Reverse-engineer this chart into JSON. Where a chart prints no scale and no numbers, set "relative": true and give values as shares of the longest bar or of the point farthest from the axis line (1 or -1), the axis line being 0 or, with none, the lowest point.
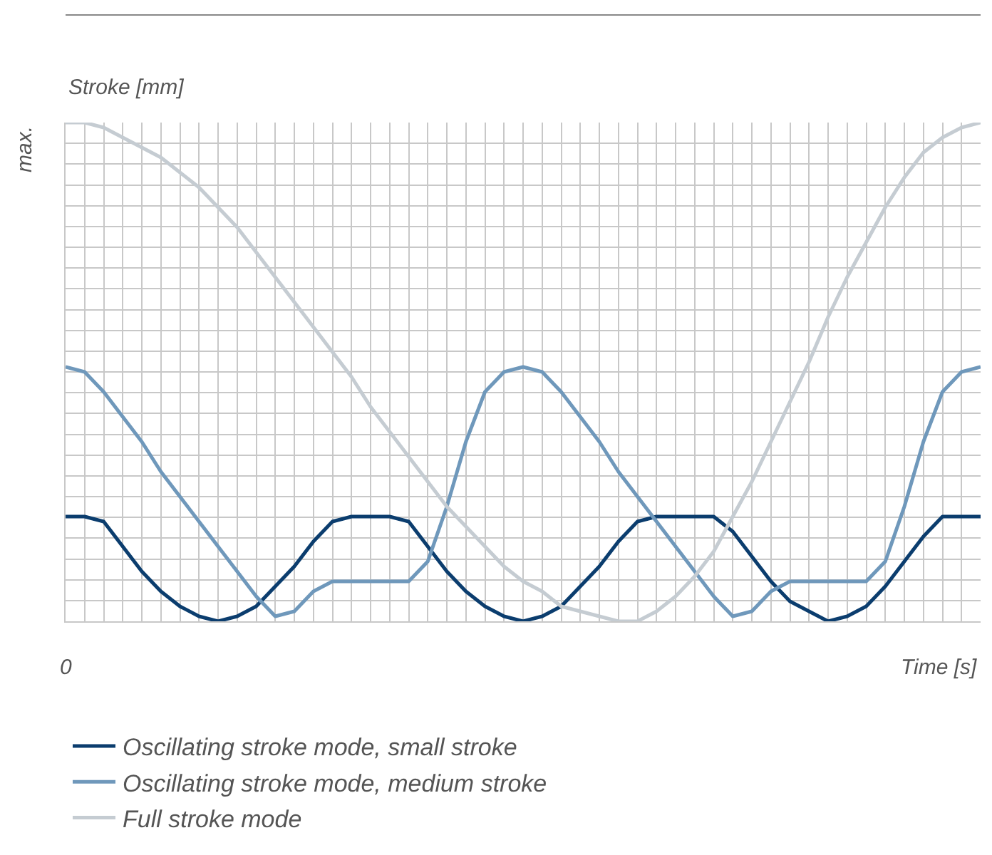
{
  "chart_data": {
    "type": "line",
    "relative": true,
    "xlabel": "Time [s]",
    "ylabel": "Stroke [mm]",
    "annotations": [
      "max.",
      "0"
    ],
    "categories": [
      null,
      null,
      null,
      null,
      null,
      null,
      null,
      null,
      null,
      null,
      null,
      null,
      null,
      null,
      null,
      null,
      null,
      null,
      null,
      null,
      null,
      null,
      null,
      null,
      null,
      null,
      null,
      null,
      null,
      null,
      null,
      null,
      null,
      null,
      null,
      null,
      null,
      null,
      null,
      null,
      null,
      null,
      null,
      null,
      null,
      null,
      null,
      null,
      null
    ],
    "grid": true,
    "legend": "bottom",
    "marker": "none",
    "line_style": "solid",
    "series": [
      {
        "name": "Oscillating stroke mode, small stroke",
        "color": "#0b3d6e",
        "values": [
          0.21,
          0.21,
          0.2,
          0.15,
          0.1,
          0.06,
          0.03,
          0.01,
          0,
          0.01,
          0.03,
          0.07,
          0.11,
          0.16,
          0.2,
          0.21,
          0.21,
          0.21,
          0.2,
          0.15,
          0.1,
          0.06,
          0.03,
          0.01,
          0,
          0.01,
          0.03,
          0.07,
          0.11,
          0.16,
          0.2,
          0.21,
          0.21,
          0.21,
          0.21,
          0.18,
          0.13,
          0.08,
          0.04,
          0.02,
          0,
          0.01,
          0.03,
          0.07,
          0.12,
          0.17,
          0.21,
          0.21,
          0.21
        ]
      },
      {
        "name": "Oscillating stroke mode, medium stroke",
        "color": "#6f98bb",
        "values": [
          0.51,
          0.5,
          0.46,
          0.41,
          0.36,
          0.3,
          0.25,
          0.2,
          0.15,
          0.1,
          0.05,
          0.01,
          0.02,
          0.06,
          0.08,
          0.08,
          0.08,
          0.08,
          0.08,
          0.12,
          0.23,
          0.36,
          0.46,
          0.5,
          0.51,
          0.5,
          0.46,
          0.41,
          0.36,
          0.3,
          0.25,
          0.2,
          0.15,
          0.1,
          0.05,
          0.01,
          0.02,
          0.06,
          0.08,
          0.08,
          0.08,
          0.08,
          0.08,
          0.12,
          0.23,
          0.36,
          0.46,
          0.5,
          0.51
        ]
      },
      {
        "name": "Full stroke mode",
        "color": "#c5ccd2",
        "values": [
          1,
          1,
          0.99,
          0.97,
          0.95,
          0.93,
          0.9,
          0.87,
          0.83,
          0.79,
          0.74,
          0.69,
          0.64,
          0.59,
          0.54,
          0.49,
          0.43,
          0.38,
          0.33,
          0.28,
          0.23,
          0.19,
          0.15,
          0.11,
          0.08,
          0.06,
          0.03,
          0.02,
          0.01,
          0,
          0,
          0.02,
          0.05,
          0.09,
          0.14,
          0.21,
          0.28,
          0.36,
          0.44,
          0.52,
          0.61,
          0.69,
          0.76,
          0.83,
          0.89,
          0.94,
          0.97,
          0.99,
          1
        ]
      }
    ]
  }
}
